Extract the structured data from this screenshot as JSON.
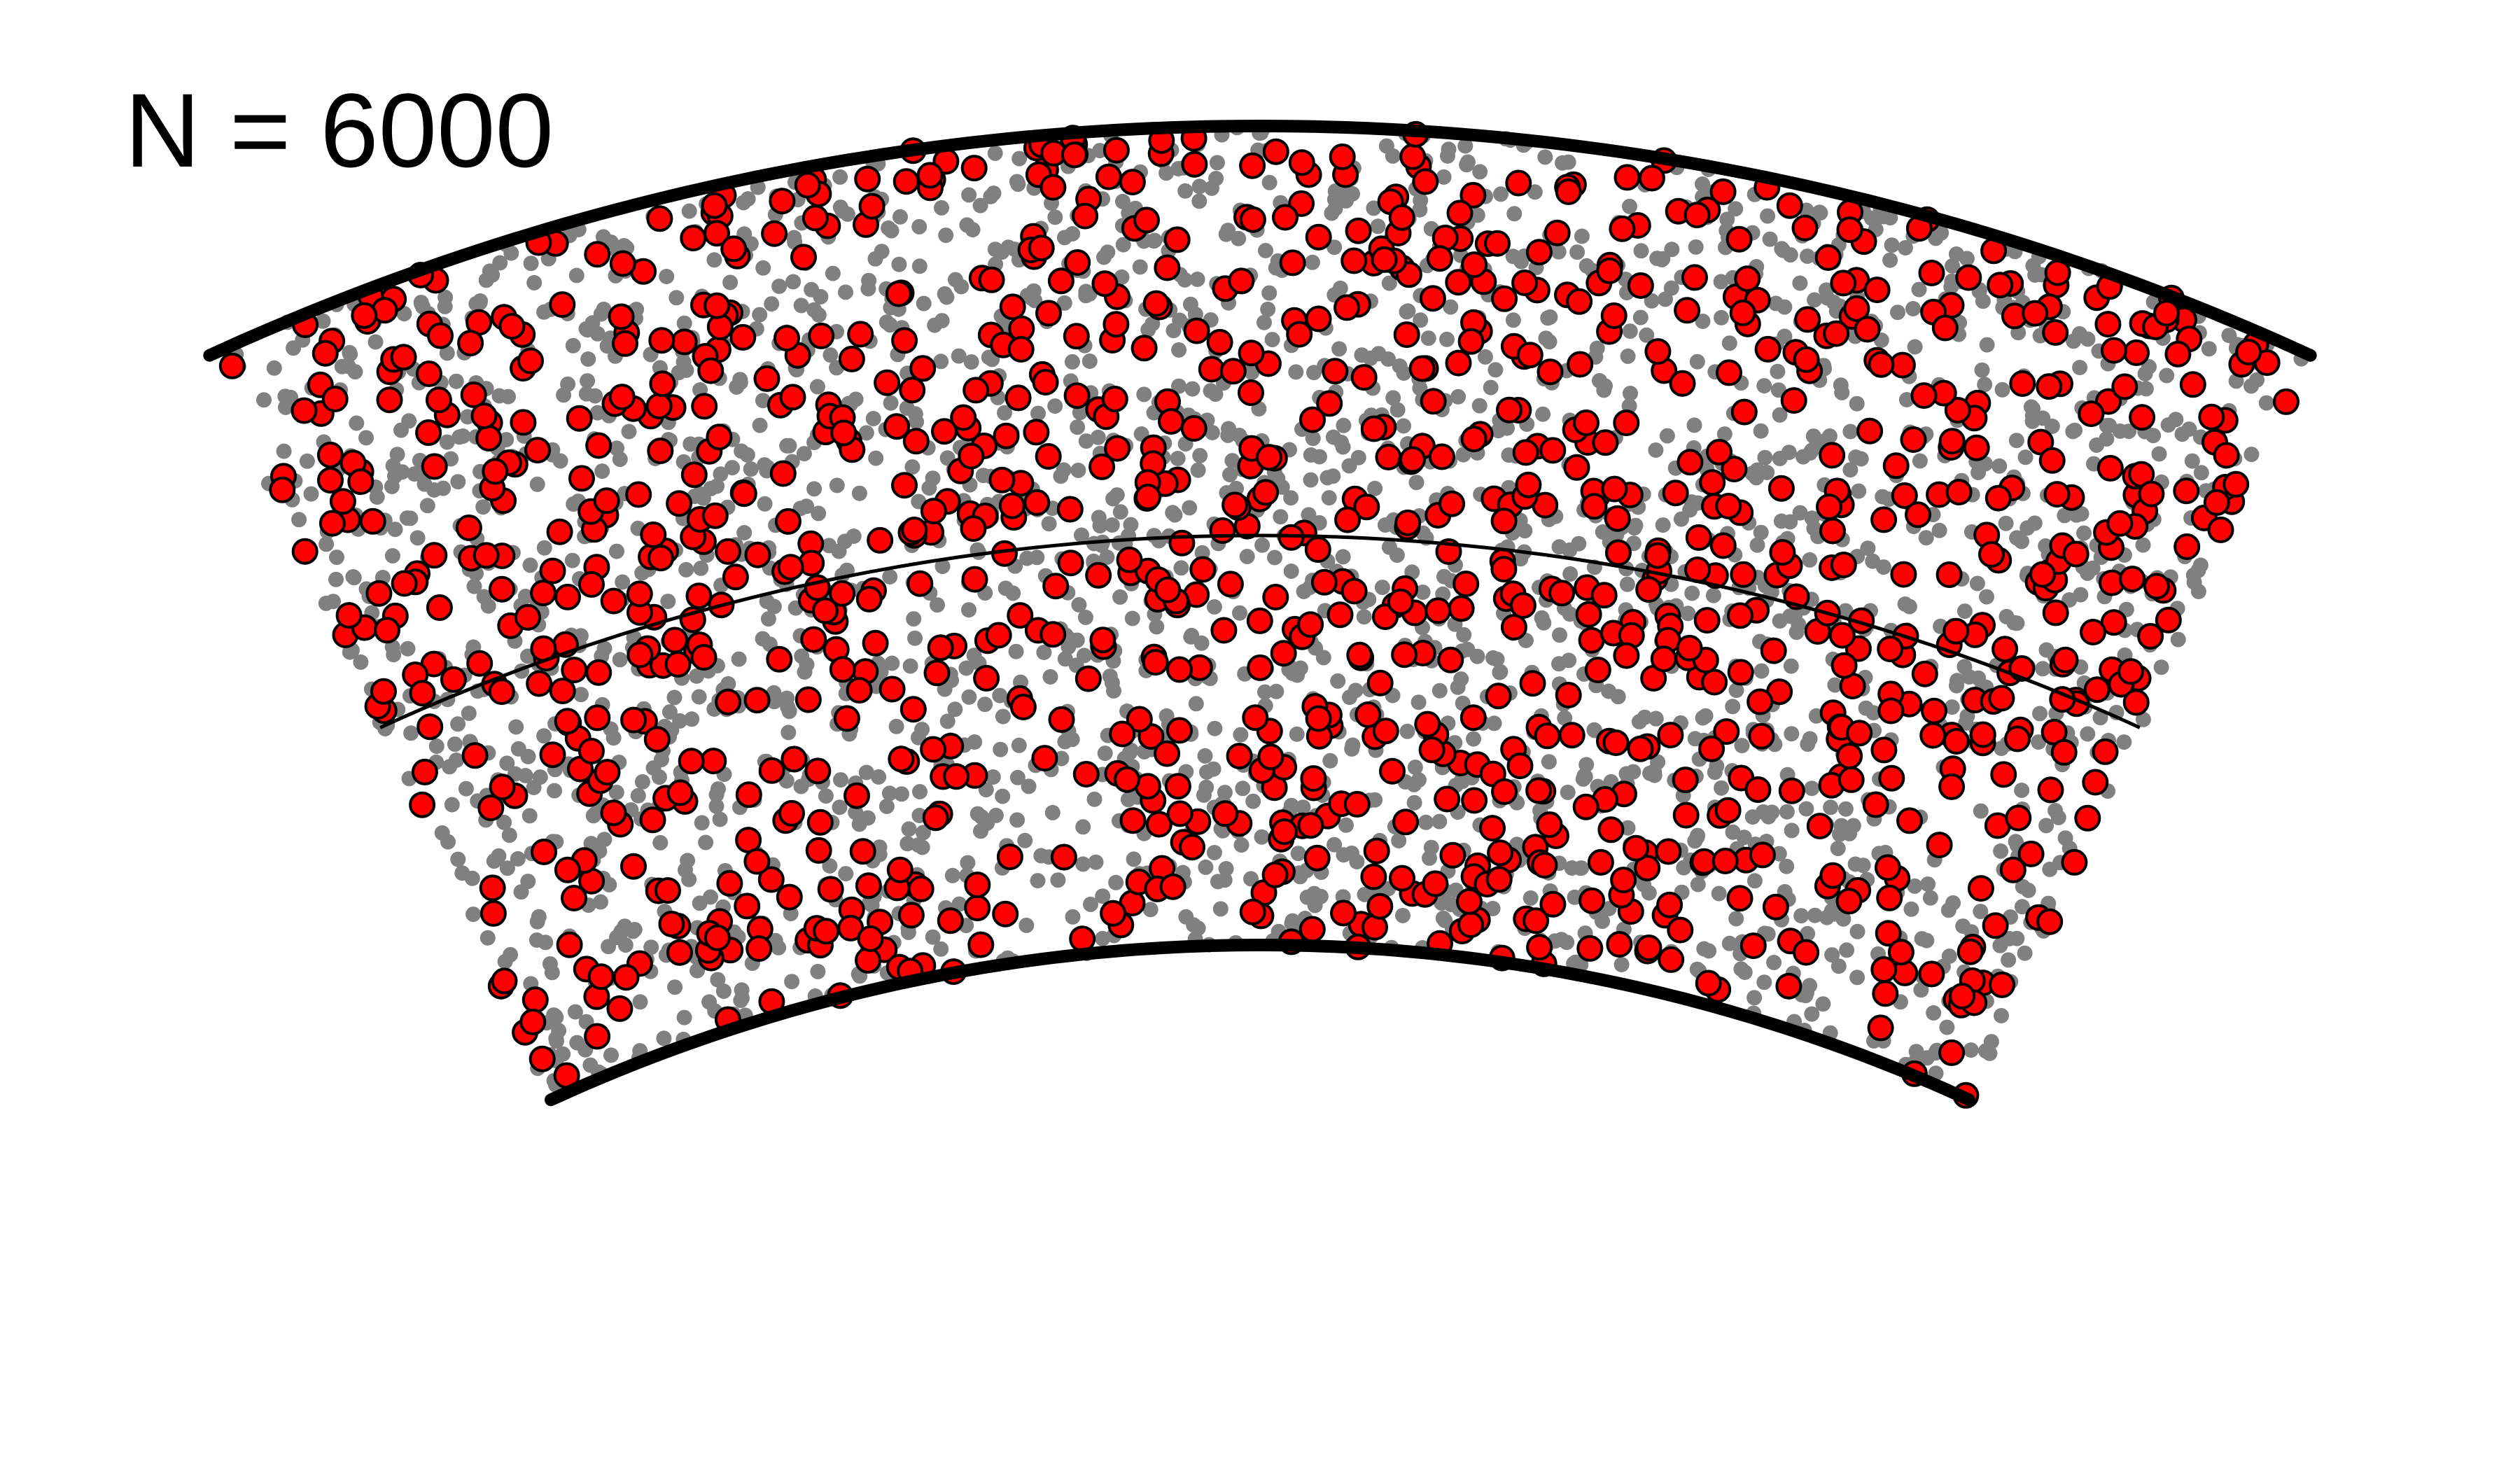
{
  "label": "N = 6000",
  "total_points": 6000,
  "colors": {
    "background": "#ffffff",
    "boundary": "#000000",
    "centerline": "#000000",
    "point": "#808080",
    "highlight_fill": "#ff0000",
    "highlight_stroke": "#000000"
  }
}
